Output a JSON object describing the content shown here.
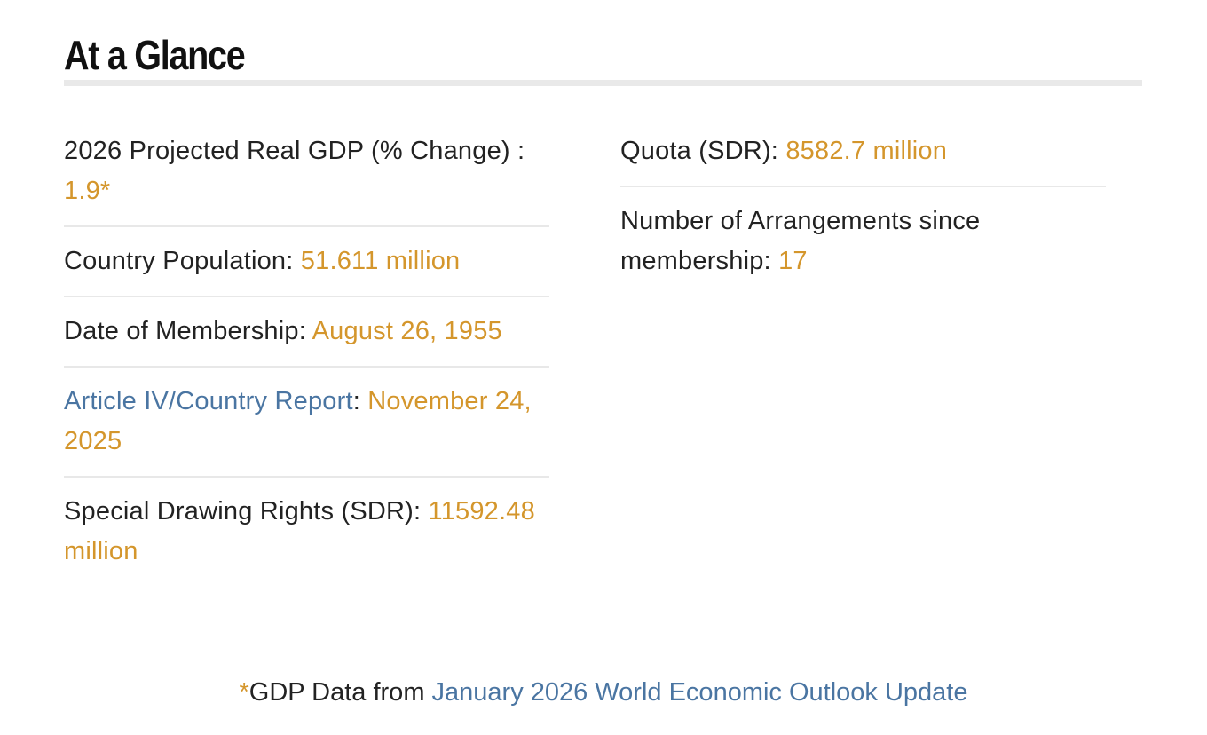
{
  "title": "At a Glance",
  "colors": {
    "value": "#d4962c",
    "link": "#4a75a2",
    "text": "#222222",
    "rule": "#e9e9e9"
  },
  "left": {
    "gdp": {
      "label": "2026 Projected Real GDP (% Change) : ",
      "value": "1.9*"
    },
    "population": {
      "label": "Country Population: ",
      "value": "51.611 million"
    },
    "membership": {
      "label": "Date of Membership: ",
      "value": "August 26, 1955"
    },
    "article": {
      "link": "Article IV/Country Report",
      "sep": ": ",
      "value": "November 24, 2025"
    },
    "sdr": {
      "label": "Special Drawing Rights (SDR): ",
      "value": "11592.48 million"
    }
  },
  "right": {
    "quota": {
      "label": "Quota (SDR): ",
      "value": "8582.7 million"
    },
    "arrangements": {
      "label": "Number of Arrangements since membership: ",
      "value": "17"
    }
  },
  "footnote": {
    "star": "*",
    "text": "GDP Data from ",
    "link": "January 2026 World Economic Outlook Update"
  }
}
